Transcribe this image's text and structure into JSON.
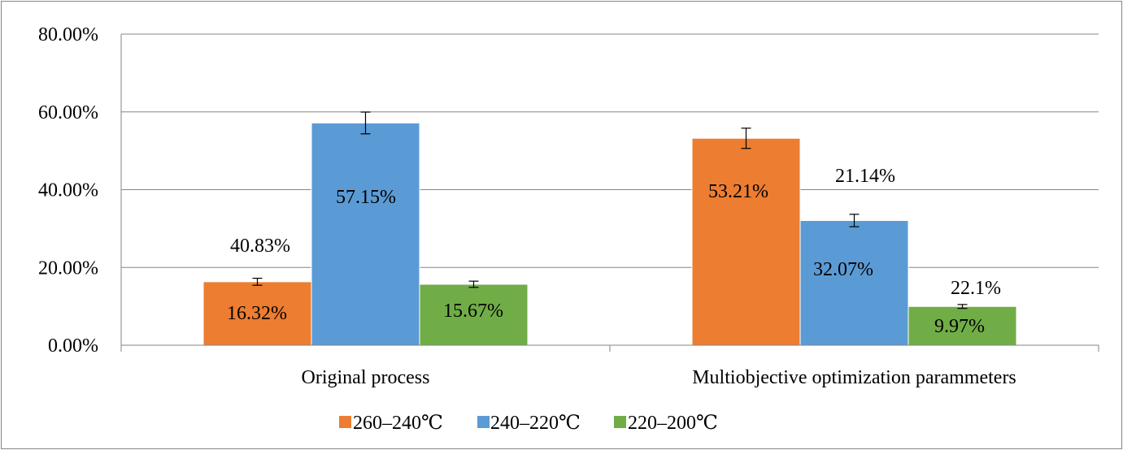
{
  "chart_data": {
    "type": "bar",
    "categories": [
      "Original process",
      "Multiobjective optimization parammeters"
    ],
    "series": [
      {
        "name": "260–240℃",
        "color": "#ED7D31",
        "values": [
          16.32,
          53.21
        ],
        "error": [
          0.9,
          2.6
        ],
        "labels": [
          "16.32%",
          "53.21%"
        ]
      },
      {
        "name": "240–220℃",
        "color": "#5B9BD5",
        "values": [
          57.15,
          32.07
        ],
        "error": [
          2.8,
          1.6
        ],
        "labels": [
          "57.15%",
          "32.07%"
        ]
      },
      {
        "name": "220–200℃",
        "color": "#70AD47",
        "values": [
          15.67,
          9.97
        ],
        "error": [
          0.8,
          0.5
        ],
        "labels": [
          "15.67%",
          "9.97%"
        ]
      }
    ],
    "annotations": [
      "40.83%",
      "21.14%",
      "22.1%"
    ],
    "yticks": [
      "0.00%",
      "20.00%",
      "40.00%",
      "60.00%",
      "80.00%"
    ],
    "ylim": [
      0,
      80
    ],
    "grid": true,
    "legend": "bottom"
  }
}
